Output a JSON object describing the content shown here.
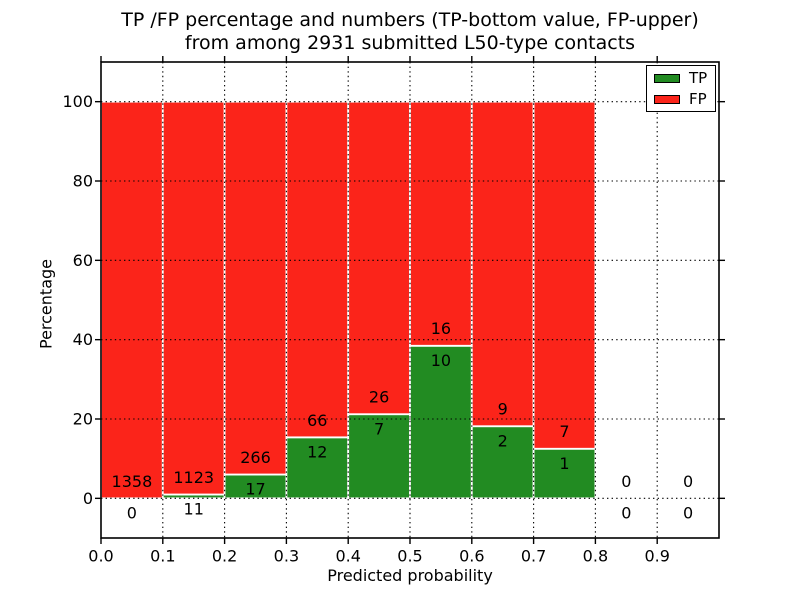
{
  "title": {
    "line1": "TP /FP percentage and numbers (TP-bottom value, FP-upper)",
    "line2": "from among 2931 submitted L50-type contacts"
  },
  "axes": {
    "xlabel": "Predicted probability",
    "ylabel": "Percentage"
  },
  "legend": {
    "items": [
      {
        "label": "TP",
        "color": "#228b22"
      },
      {
        "label": "FP",
        "color": "#fb241a"
      }
    ],
    "position": "upper right"
  },
  "colors": {
    "tp_green": "#228b22",
    "fp_red": "#fb241a",
    "background": "#ffffff",
    "grid": "#000000",
    "text": "#000000",
    "bar_edge": "#ffffff"
  },
  "chart_data": {
    "type": "bar",
    "stacked": true,
    "title": "TP /FP percentage and numbers (TP-bottom value, FP-upper) from among 2931 submitted L50-type contacts",
    "xlabel": "Predicted probability",
    "ylabel": "Percentage",
    "xlim": [
      0.0,
      1.0
    ],
    "ylim": [
      -10,
      110
    ],
    "grid": true,
    "grid_style": "dotted",
    "legend_position": "upper right",
    "total_contacts": 2931,
    "x_tick_labels": [
      "0.0",
      "0.1",
      "0.2",
      "0.3",
      "0.4",
      "0.5",
      "0.6",
      "0.7",
      "0.8",
      "0.9"
    ],
    "y_tick_labels": [
      "0",
      "20",
      "40",
      "60",
      "80",
      "100"
    ],
    "y_tick_values": [
      0,
      20,
      40,
      60,
      80,
      100
    ],
    "series": [
      {
        "name": "TP",
        "color": "#228b22",
        "counts": [
          0,
          11,
          17,
          12,
          7,
          10,
          2,
          1,
          0,
          0
        ]
      },
      {
        "name": "FP",
        "color": "#fb241a",
        "counts": [
          1358,
          1123,
          266,
          66,
          26,
          16,
          9,
          7,
          0,
          0
        ]
      }
    ],
    "bins": [
      {
        "range": "0.0-0.1",
        "x_start": 0.0,
        "x_end": 0.1,
        "tp_count": 0,
        "fp_count": 1358,
        "tp_percent": 0.0,
        "has_bar": true
      },
      {
        "range": "0.1-0.2",
        "x_start": 0.1,
        "x_end": 0.2,
        "tp_count": 11,
        "fp_count": 1123,
        "tp_percent": 0.97,
        "has_bar": true
      },
      {
        "range": "0.2-0.3",
        "x_start": 0.2,
        "x_end": 0.3,
        "tp_count": 17,
        "fp_count": 266,
        "tp_percent": 6.01,
        "has_bar": true
      },
      {
        "range": "0.3-0.4",
        "x_start": 0.3,
        "x_end": 0.4,
        "tp_count": 12,
        "fp_count": 66,
        "tp_percent": 15.38,
        "has_bar": true
      },
      {
        "range": "0.4-0.5",
        "x_start": 0.4,
        "x_end": 0.5,
        "tp_count": 7,
        "fp_count": 26,
        "tp_percent": 21.21,
        "has_bar": true
      },
      {
        "range": "0.5-0.6",
        "x_start": 0.5,
        "x_end": 0.6,
        "tp_count": 10,
        "fp_count": 16,
        "tp_percent": 38.46,
        "has_bar": true
      },
      {
        "range": "0.6-0.7",
        "x_start": 0.6,
        "x_end": 0.7,
        "tp_count": 2,
        "fp_count": 9,
        "tp_percent": 18.18,
        "has_bar": true
      },
      {
        "range": "0.7-0.8",
        "x_start": 0.7,
        "x_end": 0.8,
        "tp_count": 1,
        "fp_count": 7,
        "tp_percent": 12.5,
        "has_bar": true
      },
      {
        "range": "0.8-0.9",
        "x_start": 0.8,
        "x_end": 0.9,
        "tp_count": 0,
        "fp_count": 0,
        "tp_percent": 0.0,
        "has_bar": false
      },
      {
        "range": "0.9-1.0",
        "x_start": 0.9,
        "x_end": 1.0,
        "tp_count": 0,
        "fp_count": 0,
        "tp_percent": 0.0,
        "has_bar": false
      }
    ]
  }
}
